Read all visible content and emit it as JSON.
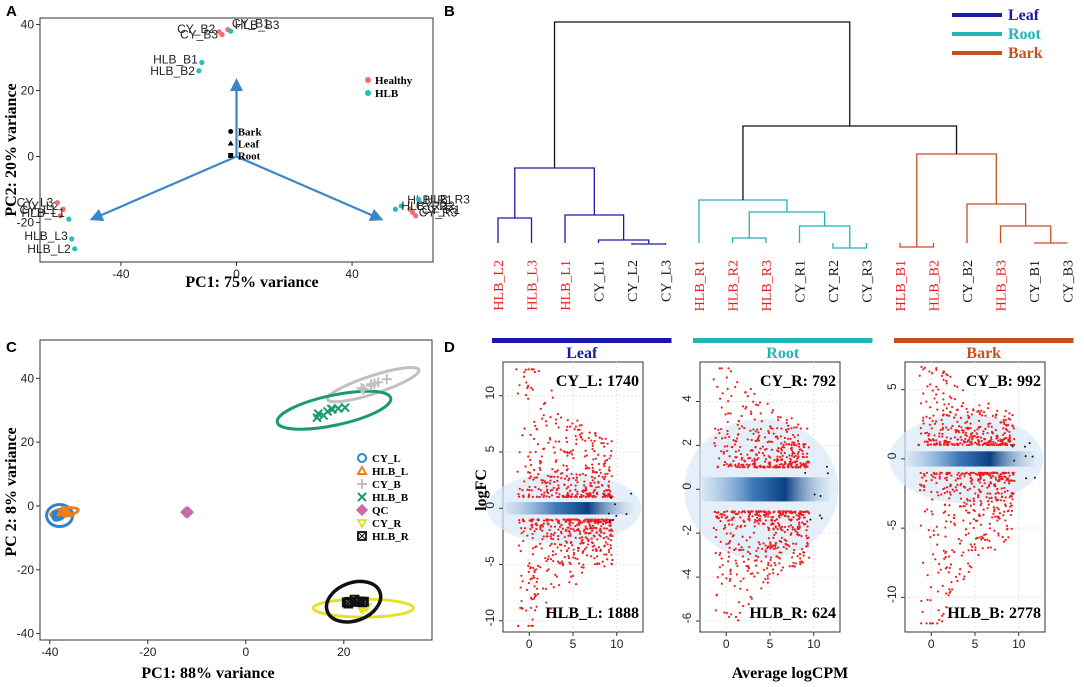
{
  "figure": {
    "panel_letters": [
      "A",
      "B",
      "C",
      "D"
    ]
  },
  "chart_data": [
    {
      "panel": "A",
      "type": "scatter",
      "title": "",
      "xlabel": "PC1: 75% variance",
      "ylabel": "PC2: 20% variance",
      "xlim": [
        -68,
        68
      ],
      "ylim": [
        -32,
        42
      ],
      "xticks": [
        -40,
        0,
        40
      ],
      "yticks": [
        -20,
        0,
        20,
        40
      ],
      "series": [
        {
          "name": "Healthy",
          "color": "#f46d6d",
          "points": [
            {
              "label": "CY_B1",
              "x": -3,
              "y": 38.5
            },
            {
              "label": "CY_B2",
              "x": -6,
              "y": 37.8
            },
            {
              "label": "CY_B3",
              "x": -5,
              "y": 37.0
            },
            {
              "label": "CY_L1",
              "x": -61,
              "y": -18
            },
            {
              "label": "CY_L2",
              "x": -60,
              "y": -16
            },
            {
              "label": "CY_L3",
              "x": -62,
              "y": -14
            },
            {
              "label": "CY_R1",
              "x": 62,
              "y": -18
            },
            {
              "label": "CY_R2",
              "x": 60,
              "y": -16
            },
            {
              "label": "CY_R3",
              "x": 61,
              "y": -17
            }
          ]
        },
        {
          "name": "HLB",
          "color": "#1fbfbf",
          "points": [
            {
              "label": "HLB_B3",
              "x": -2,
              "y": 38.0
            },
            {
              "label": "HLB_B1",
              "x": -12,
              "y": 28.5
            },
            {
              "label": "HLB_B2",
              "x": -13,
              "y": 26.0
            },
            {
              "label": "HLB_L1",
              "x": -58,
              "y": -19
            },
            {
              "label": "HLB_L3",
              "x": -57,
              "y": -25
            },
            {
              "label": "HLB_L2",
              "x": -56,
              "y": -28
            },
            {
              "label": "HLB_R1",
              "x": 57,
              "y": -15
            },
            {
              "label": "HLB_R2",
              "x": 55,
              "y": -16
            },
            {
              "label": "HLB_R3",
              "x": 63,
              "y": -13
            }
          ]
        }
      ],
      "loadings": [
        {
          "label": "Bark",
          "shape": "circle",
          "x": 0,
          "y": 23
        },
        {
          "label": "Leaf",
          "shape": "triangle",
          "x": -50,
          "y": -19
        },
        {
          "label": "Root",
          "shape": "square",
          "x": 50,
          "y": -19
        }
      ],
      "legend": {
        "placement": "right",
        "items": [
          "Healthy",
          "HLB"
        ]
      }
    },
    {
      "panel": "B",
      "type": "dendrogram",
      "legend": [
        {
          "label": "Leaf",
          "color": "#1a1aaa"
        },
        {
          "label": "Root",
          "color": "#21b5b5"
        },
        {
          "label": "Bark",
          "color": "#c8501f"
        }
      ],
      "groups": [
        {
          "name": "Leaf",
          "color": "#1a1aaa",
          "leaves": [
            "HLB_L2",
            "HLB_L3",
            "HLB_L1",
            "CY_L1",
            "CY_L2",
            "CY_L3"
          ]
        },
        {
          "name": "Root",
          "color": "#21b5b5",
          "leaves": [
            "HLB_R1",
            "HLB_R2",
            "HLB_R3",
            "CY_R1",
            "CY_R2",
            "CY_R3"
          ]
        },
        {
          "name": "Bark",
          "color": "#c8501f",
          "leaves": [
            "HLB_B1",
            "HLB_B2",
            "CY_B2",
            "HLB_B3",
            "CY_B1",
            "CY_B3"
          ]
        }
      ],
      "hlb_leaf_color": "#e8191d",
      "cy_leaf_color": "#111111"
    },
    {
      "panel": "C",
      "type": "scatter",
      "xlabel": "PC1: 88% variance",
      "ylabel": "PC 2: 8% variance",
      "xlim": [
        -42,
        38
      ],
      "ylim": [
        -42,
        52
      ],
      "xticks": [
        -40,
        -20,
        0,
        20
      ],
      "yticks": [
        -40,
        -20,
        0,
        20,
        40
      ],
      "series": [
        {
          "name": "CY_L",
          "color": "#2b86d1",
          "marker": "circle",
          "center": [
            -38,
            -3
          ]
        },
        {
          "name": "HLB_L",
          "color": "#f07f1a",
          "marker": "triangle",
          "center": [
            -37,
            -2
          ]
        },
        {
          "name": "CY_B",
          "color": "#c0c0c0",
          "marker": "plus",
          "center": [
            26,
            38
          ]
        },
        {
          "name": "HLB_B",
          "color": "#1a9b6b",
          "marker": "x",
          "center": [
            18,
            30
          ]
        },
        {
          "name": "QC",
          "color": "#c86aa6",
          "marker": "diamond",
          "center": [
            -12,
            -2
          ]
        },
        {
          "name": "CY_R",
          "color": "#e6e02b",
          "marker": "triangle-down",
          "center": [
            24,
            -32
          ]
        },
        {
          "name": "HLB_R",
          "color": "#111111",
          "marker": "square-x",
          "center": [
            22,
            -30
          ]
        }
      ],
      "legend": {
        "placement": "right",
        "items": [
          "CY_L",
          "HLB_L",
          "CY_B",
          "HLB_B",
          "QC",
          "CY_R",
          "HLB_R"
        ]
      }
    },
    {
      "panel": "D",
      "type": "scatter",
      "subplots": [
        {
          "name": "Leaf",
          "color": "#1a1aaa",
          "up_label": "CY_L: 1740",
          "down_label": "HLB_L: 1888",
          "xlim": [
            -3,
            13
          ],
          "ylim": [
            -11,
            13
          ],
          "xticks": [
            0,
            5,
            10
          ],
          "yticks": [
            -10,
            -5,
            0,
            5,
            10
          ],
          "band": 1.0
        },
        {
          "name": "Root",
          "color": "#21b5b5",
          "up_label": "CY_R: 792",
          "down_label": "HLB_R: 624",
          "xlim": [
            -3,
            13
          ],
          "ylim": [
            -6.5,
            5.8
          ],
          "xticks": [
            0,
            5,
            10
          ],
          "yticks": [
            -6,
            -4,
            -2,
            0,
            2,
            4
          ],
          "band": 1.0
        },
        {
          "name": "Bark",
          "color": "#c8501f",
          "up_label": "CY_B: 992",
          "down_label": "HLB_B: 2778",
          "xlim": [
            -3,
            13
          ],
          "ylim": [
            -12.5,
            7
          ],
          "xticks": [
            0,
            5,
            10
          ],
          "yticks": [
            -10,
            -5,
            0,
            5
          ],
          "band": 1.0
        }
      ],
      "ylabel": "logFC",
      "xlabel": "Average logCPM"
    }
  ]
}
